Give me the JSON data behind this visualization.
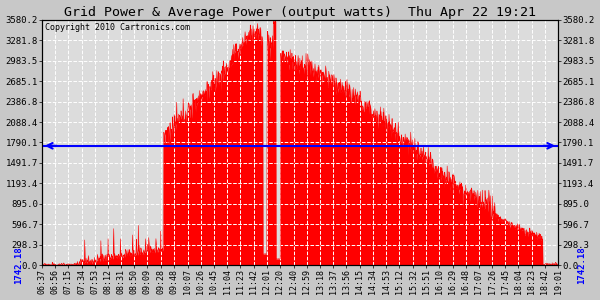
{
  "title": "Grid Power & Average Power (output watts)  Thu Apr 22 19:21",
  "copyright": "Copyright 2010 Cartronics.com",
  "avg_line_value": 1742.18,
  "avg_line_label": "1742.18",
  "y_max": 3580.2,
  "y_min": 0.0,
  "ytick_labels": [
    "0.0",
    "298.3",
    "596.7",
    "895.0",
    "1193.4",
    "1491.7",
    "1790.1",
    "2088.4",
    "2386.8",
    "2685.1",
    "2983.5",
    "3281.8",
    "3580.2"
  ],
  "ytick_values": [
    0.0,
    298.3,
    596.7,
    895.0,
    1193.4,
    1491.7,
    1790.1,
    2088.4,
    2386.8,
    2685.1,
    2983.5,
    3281.8,
    3580.2
  ],
  "fill_color": "#FF0000",
  "line_color": "#FF0000",
  "avg_line_color": "#0000FF",
  "background_color": "#C8C8C8",
  "plot_bg_color": "#DCDCDC",
  "grid_color": "#FFFFFF",
  "title_color": "#000000",
  "x_labels": [
    "06:37",
    "06:56",
    "07:15",
    "07:34",
    "07:53",
    "08:12",
    "08:31",
    "08:50",
    "09:09",
    "09:28",
    "09:48",
    "10:07",
    "10:26",
    "10:45",
    "11:04",
    "11:23",
    "11:42",
    "12:01",
    "12:20",
    "12:40",
    "12:59",
    "13:18",
    "13:37",
    "13:56",
    "14:15",
    "14:34",
    "14:53",
    "15:12",
    "15:32",
    "15:51",
    "16:10",
    "16:29",
    "16:48",
    "17:07",
    "17:26",
    "17:45",
    "18:04",
    "18:23",
    "18:42",
    "19:01"
  ]
}
